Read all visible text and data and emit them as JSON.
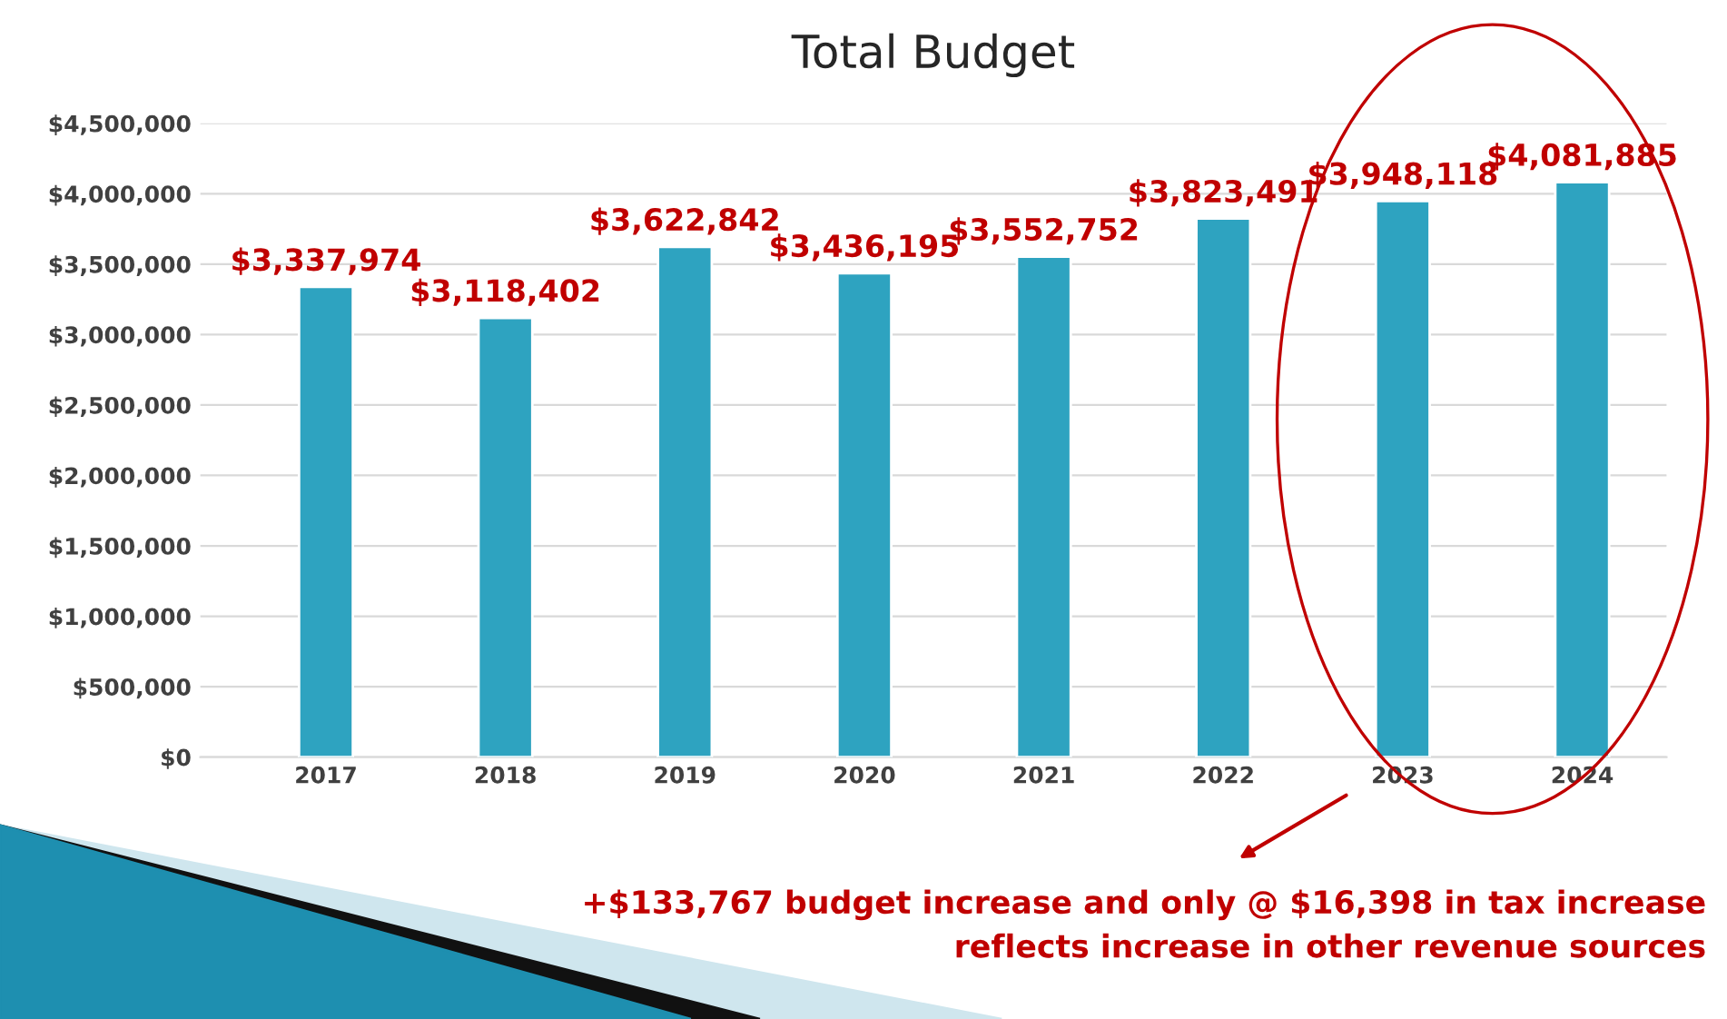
{
  "chart_data": {
    "type": "bar",
    "title": "Total Budget",
    "categories": [
      "2017",
      "2018",
      "2019",
      "2020",
      "2021",
      "2022",
      "2023",
      "2024"
    ],
    "values": [
      3337974,
      3118402,
      3622842,
      3436195,
      3552752,
      3823491,
      3948118,
      4081885
    ],
    "value_labels": [
      "$3,337,974",
      "$3,118,402",
      "$3,622,842",
      "$3,436,195",
      "$3,552,752",
      "$3,823,491",
      "$3,948,118",
      "$4,081,885"
    ],
    "color": "#2ea3c0",
    "ylim": [
      0,
      4500000
    ],
    "yticks": [
      {
        "value": 0,
        "label": "$0"
      },
      {
        "value": 500000,
        "label": "$500,000"
      },
      {
        "value": 1000000,
        "label": "$1,000,000"
      },
      {
        "value": 1500000,
        "label": "$1,500,000"
      },
      {
        "value": 2000000,
        "label": "$2,000,000"
      },
      {
        "value": 2500000,
        "label": "$2,500,000"
      },
      {
        "value": 3000000,
        "label": "$3,000,000"
      },
      {
        "value": 3500000,
        "label": "$3,500,000"
      },
      {
        "value": 4000000,
        "label": "$4,000,000"
      },
      {
        "value": 4500000,
        "label": "$4,500,000"
      }
    ],
    "grid": "y",
    "annotations": [
      "+$133,767 budget increase and only @ $16,398 in tax increase",
      "reflects increase in other revenue sources"
    ]
  }
}
